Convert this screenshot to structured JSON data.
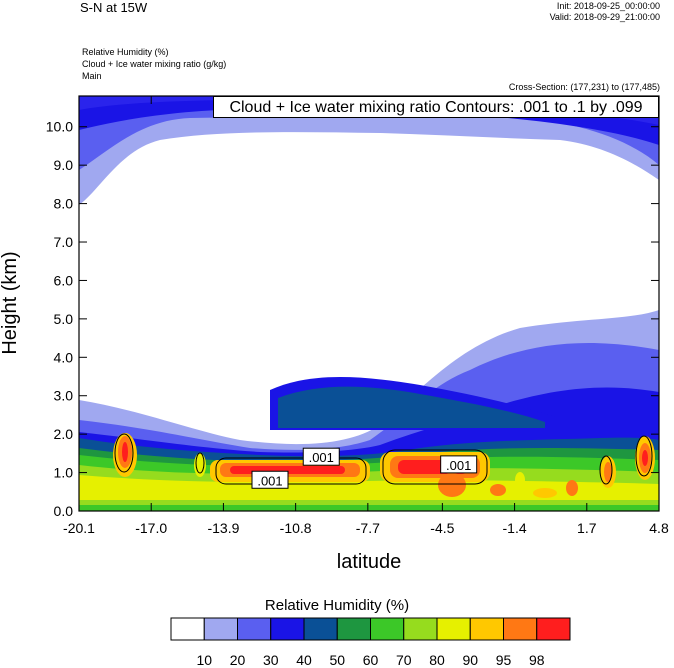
{
  "header": {
    "title": "S-N at 15W",
    "init": "Init: 2018-09-25_00:00:00",
    "valid": "Valid: 2018-09-29_21:00:00",
    "fields": [
      "Relative Humidity   (%)",
      "Cloud + Ice water mixing ratio   (g/kg)",
      "Main"
    ],
    "cross_section": "Cross-Section: (177,231) to (177,485)"
  },
  "contour_label": "Cloud + Ice water mixing ratio Contours: .001 to .1 by .099",
  "colorbar": {
    "title": "Relative Humidity  (%)",
    "colors": [
      "#ffffff",
      "#a0a8f0",
      "#5a5ff0",
      "#1a14e6",
      "#0a5096",
      "#1e9640",
      "#3cc828",
      "#96dc1e",
      "#e6f000",
      "#ffc800",
      "#ff7814",
      "#ff1e1e"
    ],
    "labels": [
      "10",
      "20",
      "30",
      "40",
      "50",
      "60",
      "70",
      "80",
      "90",
      "95",
      "98"
    ]
  },
  "chart_data": {
    "type": "heatmap",
    "xlabel": "latitude",
    "ylabel": "Height (km)",
    "xlim": [
      -20.1,
      4.8
    ],
    "ylim": [
      0,
      10.8
    ],
    "xticks": [
      "-20.1",
      "-17.0",
      "-13.9",
      "-10.8",
      "-7.7",
      "-4.5",
      "-1.4",
      "1.7",
      "4.8"
    ],
    "yticks": [
      "0.0",
      "1.0",
      "2.0",
      "3.0",
      "4.0",
      "5.0",
      "6.0",
      "7.0",
      "8.0",
      "9.0",
      "10.0"
    ],
    "contour_labels": [
      {
        "text": ".001",
        "x": -11.9,
        "y": 0.8
      },
      {
        "text": ".001",
        "x": -9.7,
        "y": 1.4
      },
      {
        "text": ".001",
        "x": -3.8,
        "y": 1.2
      }
    ]
  }
}
